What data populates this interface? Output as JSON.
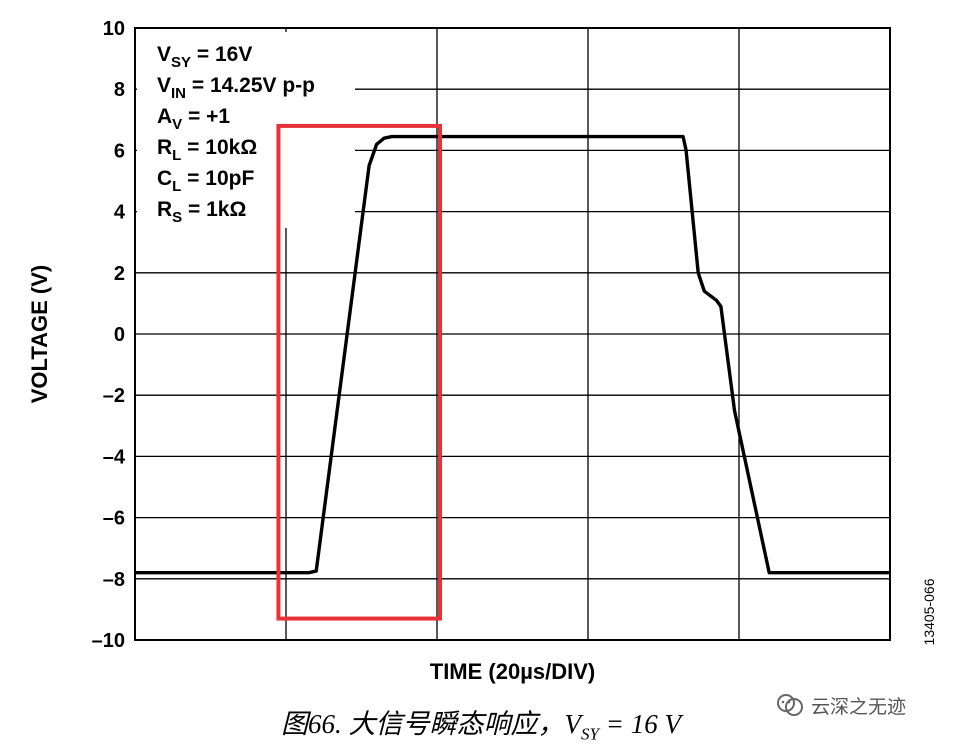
{
  "chart_data": {
    "type": "line",
    "xlabel": "TIME (20µs/DIV)",
    "ylabel": "VOLTAGE (V)",
    "ylim": [
      -10,
      10
    ],
    "yticks": [
      10,
      8,
      6,
      4,
      2,
      0,
      -2,
      -4,
      -6,
      -8,
      -10
    ],
    "ytick_labels": [
      "10",
      "8",
      "6",
      "4",
      "2",
      "0",
      "–2",
      "–4",
      "–6",
      "–8",
      "–10"
    ],
    "x_divisions": 5,
    "grid": true,
    "annotation_lines": [
      {
        "sym": "V",
        "sub": "SY",
        "rest": " = 16V"
      },
      {
        "sym": "V",
        "sub": "IN",
        "rest": " = 14.25V p-p"
      },
      {
        "sym": "A",
        "sub": "V",
        "rest": " = +1"
      },
      {
        "sym": "R",
        "sub": "L",
        "rest": " = 10kΩ"
      },
      {
        "sym": "C",
        "sub": "L",
        "rest": " = 10pF"
      },
      {
        "sym": "R",
        "sub": "S",
        "rest": " = 1kΩ"
      }
    ],
    "side_label": "13405-066",
    "series": [
      {
        "x": [
          0,
          1.15,
          1.2,
          1.55,
          1.6,
          1.65,
          1.7,
          3.63,
          3.65,
          3.73,
          3.77,
          3.85,
          3.88,
          3.97,
          4.2,
          5.0
        ],
        "y": [
          -7.8,
          -7.8,
          -7.75,
          5.5,
          6.2,
          6.4,
          6.45,
          6.45,
          6.0,
          2.0,
          1.4,
          1.1,
          0.9,
          -2.5,
          -7.8,
          -7.8
        ]
      }
    ],
    "highlight_box": {
      "x": [
        0.95,
        2.02
      ],
      "y": [
        -9.3,
        6.8
      ]
    }
  },
  "caption": {
    "text": "图66.  大信号瞬态响应，",
    "v": "V",
    "sub": "SY",
    "rest": " = 16 V"
  },
  "watermark": {
    "text": "云深之无迹",
    "icon": "wechat-official-account-icon"
  },
  "colors": {
    "line": "#000000",
    "grid": "#000000",
    "highlight": "#e8323a",
    "text": "#000000"
  }
}
